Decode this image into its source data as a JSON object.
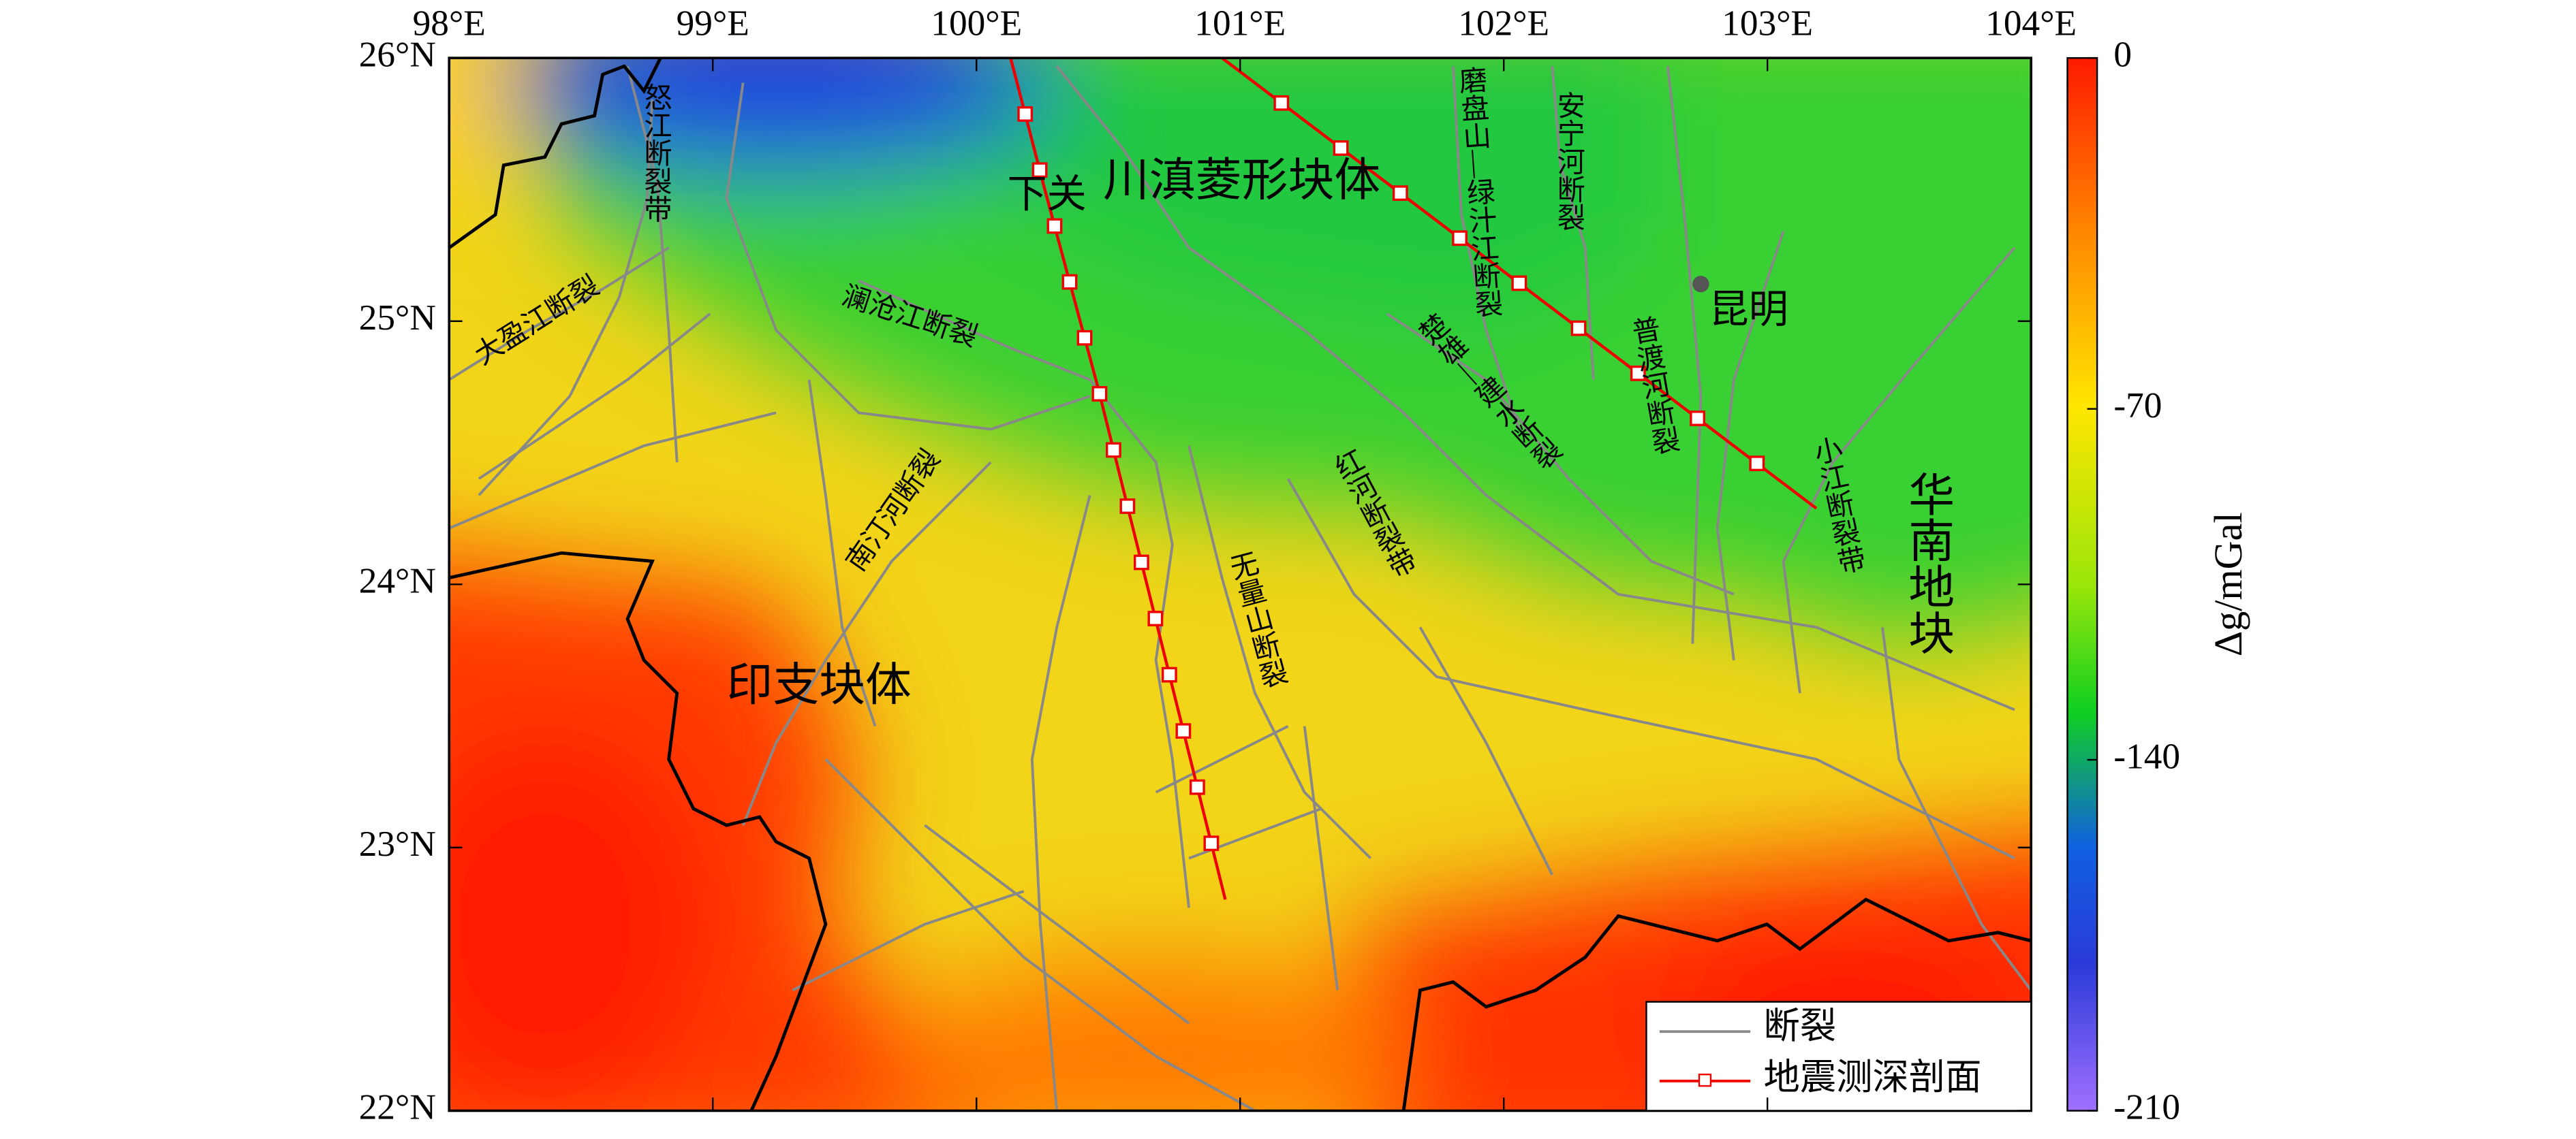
{
  "map": {
    "lon_labels": [
      "98°E",
      "99°E",
      "100°E",
      "101°E",
      "102°E",
      "103°E",
      "104°E"
    ],
    "lat_labels": [
      "26°N",
      "25°N",
      "24°N",
      "23°N",
      "22°N"
    ],
    "region_labels": [
      "川滇菱形块体",
      "印支块体",
      "华南地块"
    ],
    "city_labels": [
      "下关",
      "昆明"
    ],
    "fault_labels": [
      "怒江断裂带",
      "大盈江断裂",
      "澜沧江断裂",
      "南汀河断裂",
      "无量山断裂",
      "红河断裂带",
      "楚雄—建水断裂",
      "磨盘山—绿汁江断裂",
      "安宁河断裂",
      "普渡河断裂",
      "小江断裂带"
    ]
  },
  "colorbar": {
    "label": "Δg/mGal",
    "range": [
      -210,
      0
    ],
    "ticks": [
      0,
      -70,
      -140,
      -210
    ]
  },
  "legend": [
    "断裂",
    "地震测深剖面"
  ]
}
